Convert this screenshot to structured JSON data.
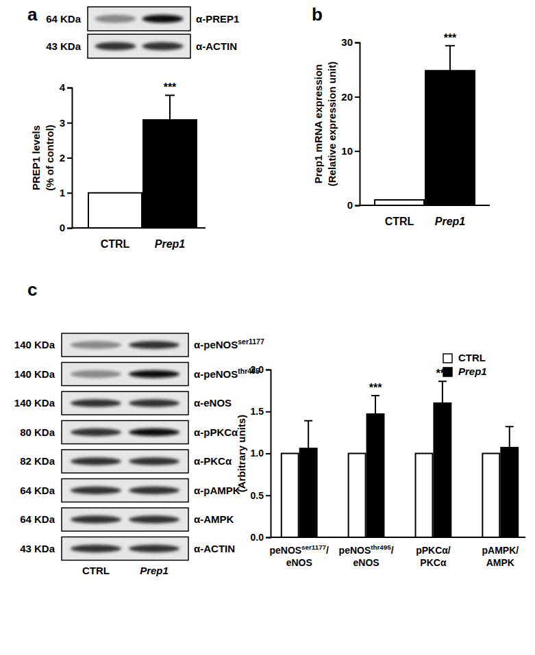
{
  "chart_data": [
    {
      "type": "bar",
      "panel": "a",
      "categories": [
        "CTRL",
        "Prep1"
      ],
      "values": [
        1,
        3.08
      ],
      "errors": [
        null,
        0.7
      ],
      "colors": [
        "#ffffff",
        "#000000"
      ],
      "ylabel": [
        "PREP1 levels",
        "(% of control)"
      ],
      "ylim": [
        0,
        4
      ],
      "yticks": [
        0,
        1,
        2,
        3,
        4
      ],
      "significance": [
        null,
        "***"
      ],
      "blots": [
        {
          "size": "64 KDa",
          "antibody": "α-PREP1"
        },
        {
          "size": "43 KDa",
          "antibody": "α-ACTIN"
        }
      ]
    },
    {
      "type": "bar",
      "panel": "b",
      "categories": [
        "CTRL",
        "Prep1"
      ],
      "values": [
        1,
        24.8
      ],
      "errors": [
        null,
        4.6
      ],
      "colors": [
        "#ffffff",
        "#000000"
      ],
      "ylabel": [
        "Prep1 mRNA expression",
        "(Relative expression unit)"
      ],
      "ylim": [
        0,
        30
      ],
      "yticks": [
        0,
        10,
        20,
        30
      ],
      "significance": [
        null,
        "***"
      ]
    },
    {
      "type": "bar",
      "panel": "c",
      "categories": [
        "peNOSser1177/eNOS",
        "peNOSthr495/eNOS",
        "pPKCα/PKCα",
        "pAMPK/AMPK"
      ],
      "category_superscripts": [
        "ser1177",
        "thr495",
        null,
        null
      ],
      "series": [
        {
          "name": "CTRL",
          "color": "#ffffff",
          "values": [
            1,
            1,
            1,
            1
          ]
        },
        {
          "name": "Prep1",
          "color": "#000000",
          "values": [
            1.06,
            1.47,
            1.6,
            1.07
          ],
          "errors": [
            0.33,
            0.22,
            0.26,
            0.25
          ]
        }
      ],
      "ylabel": "(Arbitrary units)",
      "ylim": [
        0,
        2
      ],
      "yticks": [
        {
          "value": 0,
          "label": "0.0"
        },
        {
          "value": 0.5,
          "label": "0.5"
        },
        {
          "value": 1,
          "label": "1.0"
        },
        {
          "value": 1.5,
          "label": "1.5"
        },
        {
          "value": 2,
          "label": "2.0"
        }
      ],
      "significance": [
        null,
        "***",
        "***",
        null
      ],
      "legend": "top-right",
      "blots": [
        {
          "size": "140 KDa",
          "antibody": "α-peNOSser1177",
          "superscript": "ser1177"
        },
        {
          "size": "140 KDa",
          "antibody": "α-peNOSthr495",
          "superscript": "thr495"
        },
        {
          "size": "140 KDa",
          "antibody": "α-eNOS"
        },
        {
          "size": "80 KDa",
          "antibody": "α-pPKCα"
        },
        {
          "size": "82 KDa",
          "antibody": "α-PKCα"
        },
        {
          "size": "64 KDa",
          "antibody": "α-pAMPK"
        },
        {
          "size": "64 KDa",
          "antibody": "α-AMPK"
        },
        {
          "size": "43 KDa",
          "antibody": "α-ACTIN"
        }
      ],
      "blot_lanes": [
        "CTRL",
        "Prep1"
      ]
    }
  ]
}
